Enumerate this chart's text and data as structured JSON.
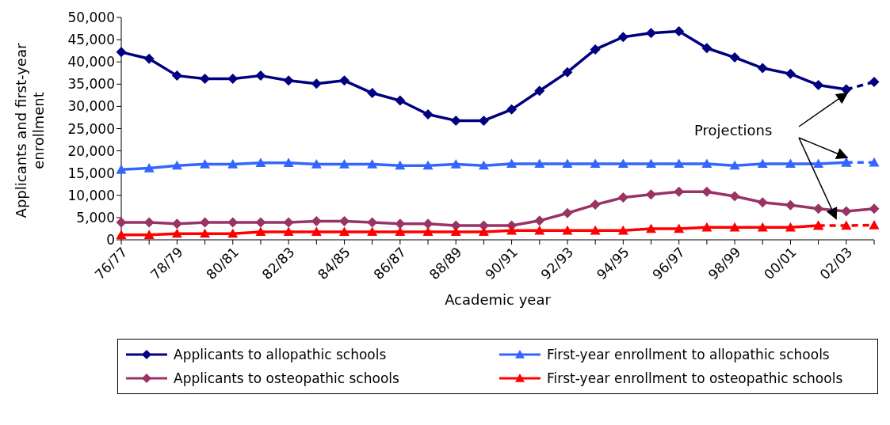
{
  "chart_data": {
    "type": "line",
    "xlabel": "Academic year",
    "ylabel": "Applicants and first-year enrollment",
    "categories": [
      "76/77",
      null,
      "78/79",
      null,
      "80/81",
      null,
      "82/83",
      null,
      "84/85",
      null,
      "86/87",
      null,
      "88/89",
      null,
      "90/91",
      null,
      "92/93",
      null,
      "94/95",
      null,
      "96/97",
      null,
      "98/99",
      null,
      "00/01",
      null,
      "02/03",
      null
    ],
    "ylim": [
      0,
      50000
    ],
    "yticks": [
      0,
      {
        "value": 5000,
        "label": "5,000"
      },
      {
        "value": 10000,
        "label": "10,000"
      },
      {
        "value": 15000,
        "label": "15,000"
      },
      {
        "value": 20000,
        "label": "20,000"
      },
      {
        "value": 25000,
        "label": "25,000"
      },
      {
        "value": 30000,
        "label": "30,000"
      },
      {
        "value": 35000,
        "label": "35,000"
      },
      {
        "value": 40000,
        "label": "40,000"
      },
      {
        "value": 45000,
        "label": "45,000"
      },
      {
        "value": 50000,
        "label": "50,000"
      }
    ],
    "legend": "bottom",
    "line_style": "solid",
    "annotations": [
      "Projections"
    ],
    "series": [
      {
        "name": "Applicants to allopathic schools",
        "color": "#000080",
        "marker": "diamond",
        "values": [
          42200,
          40700,
          36900,
          36200,
          36200,
          36900,
          35800,
          35100,
          35800,
          33000,
          31300,
          28200,
          26800,
          26800,
          29300,
          33500,
          37700,
          42800,
          45600,
          46500,
          46900,
          43100,
          41000,
          38600,
          37300,
          34800,
          33800,
          null
        ]
      },
      {
        "name": "First-year enrollment to allopathic schools",
        "color": "#3366ff",
        "marker": "triangle",
        "values": [
          15800,
          16100,
          16700,
          17000,
          17000,
          17300,
          17300,
          17000,
          17000,
          17000,
          16700,
          16700,
          17000,
          16700,
          17100,
          17100,
          17100,
          17100,
          17100,
          17100,
          17100,
          17100,
          16700,
          17100,
          17100,
          17100,
          17400,
          null
        ]
      },
      {
        "name": "Applicants to osteopathic schools",
        "color": "#993366",
        "marker": "diamond",
        "values": [
          3900,
          3900,
          3600,
          3900,
          3900,
          3900,
          3900,
          4200,
          4200,
          3900,
          3600,
          3600,
          3200,
          3200,
          3200,
          4300,
          6000,
          7900,
          9500,
          10200,
          10800,
          10800,
          9800,
          8400,
          7800,
          7000,
          6400,
          7000
        ]
      },
      {
        "name": "First-year enrollment to osteopathic schools",
        "color": "#ff0000",
        "marker": "triangle",
        "values": [
          1100,
          1100,
          1400,
          1400,
          1400,
          1800,
          1800,
          1800,
          1800,
          1800,
          1800,
          1800,
          1800,
          1800,
          2100,
          2100,
          2100,
          2100,
          2100,
          2500,
          2500,
          2800,
          2800,
          2800,
          2800,
          3200,
          null,
          null
        ]
      },
      {
        "color": "#000080",
        "marker": "diamond",
        "line_style": "dashed",
        "values": [
          null,
          null,
          null,
          null,
          null,
          null,
          null,
          null,
          null,
          null,
          null,
          null,
          null,
          null,
          null,
          null,
          null,
          null,
          null,
          null,
          null,
          null,
          null,
          null,
          null,
          null,
          33800,
          35500
        ]
      },
      {
        "color": "#3366ff",
        "marker": "triangle",
        "line_style": "dashed",
        "values": [
          null,
          null,
          null,
          null,
          null,
          null,
          null,
          null,
          null,
          null,
          null,
          null,
          null,
          null,
          null,
          null,
          null,
          null,
          null,
          null,
          null,
          null,
          null,
          null,
          null,
          null,
          17400,
          17400
        ]
      },
      {
        "color": "#ff0000",
        "marker": "triangle",
        "line_style": "dashed",
        "values": [
          null,
          null,
          null,
          null,
          null,
          null,
          null,
          null,
          null,
          null,
          null,
          null,
          null,
          null,
          null,
          null,
          null,
          null,
          null,
          null,
          null,
          null,
          null,
          null,
          null,
          3200,
          3200,
          3300
        ]
      }
    ]
  }
}
